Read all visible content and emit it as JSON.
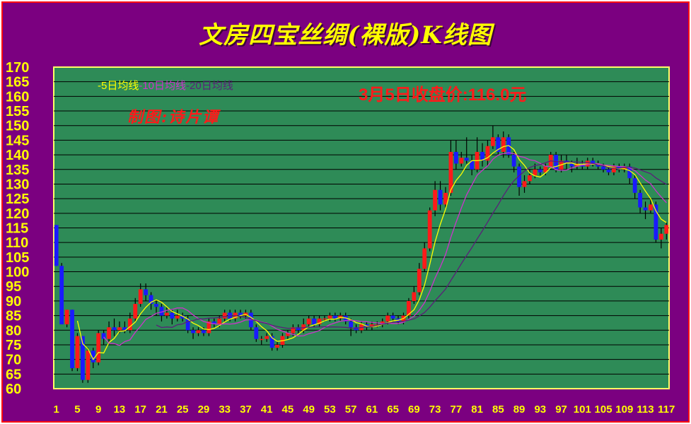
{
  "title": "文房四宝丝绸(裸版)K线图",
  "legend": {
    "ma5": "-5日均线",
    "ma10": "-10日均线",
    "ma20": "-20日均线"
  },
  "annotation_close": "3月5日收盘价:116.0元",
  "author": "制图:诗片谭",
  "colors": {
    "frame_bg": "#7b0080",
    "plot_bg": "#2e8b57",
    "up": "#ff1a1a",
    "down": "#1a1aff",
    "ma5": "#ffff00",
    "ma10": "#cc33cc",
    "ma20": "#5a1f7a",
    "labels": "#ffff00"
  },
  "chart_data": {
    "type": "candlestick",
    "title": "文房四宝丝绸(裸版)K线图",
    "ylim": [
      60,
      170
    ],
    "yticks": [
      60,
      65,
      70,
      75,
      80,
      85,
      90,
      95,
      100,
      105,
      110,
      115,
      120,
      125,
      130,
      135,
      140,
      145,
      150,
      155,
      160,
      165,
      170
    ],
    "xlim": [
      1,
      117
    ],
    "xtick_labels": [
      "1",
      "5",
      "9",
      "13",
      "17",
      "21",
      "25",
      "29",
      "33",
      "37",
      "41",
      "45",
      "49",
      "53",
      "57",
      "61",
      "65",
      "69",
      "73",
      "77",
      "81",
      "85",
      "89",
      "93",
      "97",
      "101",
      "105",
      "109",
      "113",
      "117"
    ],
    "grid": true,
    "candles": [
      [
        1,
        116,
        102,
        116,
        102
      ],
      [
        2,
        102,
        82,
        103,
        82
      ],
      [
        3,
        82,
        87,
        87,
        81
      ],
      [
        4,
        87,
        67,
        87,
        66
      ],
      [
        5,
        67,
        78,
        79,
        66
      ],
      [
        6,
        78,
        63,
        78,
        62
      ],
      [
        7,
        63,
        73,
        74,
        62
      ],
      [
        8,
        73,
        69,
        74,
        67
      ],
      [
        9,
        69,
        79,
        80,
        68
      ],
      [
        10,
        79,
        77,
        80,
        75
      ],
      [
        11,
        77,
        81,
        83,
        76
      ],
      [
        12,
        81,
        80,
        84,
        78
      ],
      [
        13,
        80,
        81,
        83,
        79
      ],
      [
        14,
        81,
        80,
        83,
        79
      ],
      [
        15,
        80,
        84,
        86,
        79
      ],
      [
        16,
        84,
        89,
        91,
        83
      ],
      [
        17,
        89,
        94,
        96,
        88
      ],
      [
        18,
        94,
        92,
        96,
        90
      ],
      [
        19,
        92,
        89,
        93,
        87
      ],
      [
        20,
        89,
        88,
        90,
        85
      ],
      [
        21,
        88,
        85,
        89,
        83
      ],
      [
        22,
        85,
        86,
        88,
        84
      ],
      [
        23,
        86,
        84,
        87,
        82
      ],
      [
        24,
        84,
        85,
        87,
        83
      ],
      [
        25,
        85,
        84,
        86,
        83
      ],
      [
        26,
        84,
        80,
        85,
        79
      ],
      [
        27,
        80,
        79,
        81,
        77
      ],
      [
        28,
        79,
        80,
        81,
        78
      ],
      [
        29,
        80,
        79,
        81,
        78
      ],
      [
        30,
        79,
        83,
        84,
        78
      ],
      [
        31,
        83,
        82,
        84,
        81
      ],
      [
        32,
        82,
        84,
        85,
        81
      ],
      [
        33,
        84,
        86,
        87,
        83
      ],
      [
        34,
        86,
        84,
        87,
        83
      ],
      [
        35,
        84,
        86,
        87,
        83
      ],
      [
        36,
        86,
        85,
        87,
        84
      ],
      [
        37,
        85,
        86,
        87,
        84
      ],
      [
        38,
        86,
        81,
        87,
        80
      ],
      [
        39,
        81,
        77,
        82,
        76
      ],
      [
        40,
        77,
        77,
        78,
        75
      ],
      [
        41,
        77,
        78,
        79,
        76
      ],
      [
        42,
        78,
        74,
        79,
        73
      ],
      [
        43,
        74,
        75,
        76,
        73
      ],
      [
        44,
        75,
        78,
        79,
        74
      ],
      [
        45,
        78,
        79,
        80,
        77
      ],
      [
        46,
        79,
        81,
        82,
        78
      ],
      [
        47,
        81,
        80,
        82,
        79
      ],
      [
        48,
        80,
        82,
        84,
        79
      ],
      [
        49,
        82,
        84,
        85,
        81
      ],
      [
        50,
        84,
        82,
        85,
        81
      ],
      [
        51,
        82,
        84,
        85,
        81
      ],
      [
        52,
        84,
        84,
        85,
        83
      ],
      [
        53,
        84,
        85,
        86,
        83
      ],
      [
        54,
        85,
        84,
        86,
        83
      ],
      [
        55,
        84,
        85,
        86,
        83
      ],
      [
        56,
        85,
        83,
        86,
        82
      ],
      [
        57,
        83,
        81,
        84,
        78
      ],
      [
        58,
        81,
        80,
        82,
        79
      ],
      [
        59,
        80,
        82,
        83,
        79
      ],
      [
        60,
        82,
        81,
        83,
        80
      ],
      [
        61,
        81,
        82,
        83,
        80
      ],
      [
        62,
        82,
        82,
        83,
        81
      ],
      [
        63,
        82,
        83,
        84,
        81
      ],
      [
        64,
        83,
        85,
        86,
        82
      ],
      [
        65,
        85,
        84,
        86,
        83
      ],
      [
        66,
        84,
        83,
        85,
        82
      ],
      [
        67,
        83,
        85,
        86,
        82
      ],
      [
        68,
        85,
        90,
        91,
        84
      ],
      [
        69,
        90,
        93,
        95,
        89
      ],
      [
        70,
        93,
        101,
        103,
        92
      ],
      [
        71,
        101,
        108,
        110,
        100
      ],
      [
        72,
        108,
        121,
        122,
        107
      ],
      [
        73,
        121,
        128,
        131,
        119
      ],
      [
        74,
        128,
        123,
        131,
        121
      ],
      [
        75,
        123,
        127,
        129,
        122
      ],
      [
        76,
        127,
        141,
        145,
        126
      ],
      [
        77,
        141,
        137,
        145,
        135
      ],
      [
        78,
        137,
        139,
        141,
        136
      ],
      [
        79,
        139,
        138,
        146,
        137
      ],
      [
        80,
        138,
        135,
        140,
        133
      ],
      [
        81,
        135,
        141,
        146,
        134
      ],
      [
        82,
        141,
        138,
        144,
        136
      ],
      [
        83,
        138,
        143,
        145,
        136
      ],
      [
        84,
        143,
        146,
        150,
        142
      ],
      [
        85,
        146,
        141,
        147,
        140
      ],
      [
        86,
        141,
        146,
        148,
        139
      ],
      [
        87,
        146,
        140,
        147,
        139
      ],
      [
        88,
        140,
        136,
        141,
        134
      ],
      [
        89,
        136,
        129,
        137,
        126
      ],
      [
        90,
        129,
        131,
        133,
        127
      ],
      [
        91,
        131,
        133,
        135,
        130
      ],
      [
        92,
        133,
        135,
        137,
        132
      ],
      [
        93,
        135,
        134,
        136,
        133
      ],
      [
        94,
        134,
        136,
        137,
        133
      ],
      [
        95,
        136,
        140,
        141,
        135
      ],
      [
        96,
        140,
        135,
        141,
        134
      ],
      [
        97,
        135,
        138,
        140,
        134
      ],
      [
        98,
        138,
        137,
        140,
        135
      ],
      [
        99,
        137,
        136,
        138,
        134
      ],
      [
        100,
        136,
        137,
        139,
        135
      ],
      [
        101,
        137,
        136,
        138,
        135
      ],
      [
        102,
        136,
        138,
        139,
        135
      ],
      [
        103,
        138,
        137,
        139,
        136
      ],
      [
        104,
        137,
        136,
        138,
        135
      ],
      [
        105,
        136,
        135,
        137,
        134
      ],
      [
        106,
        135,
        134,
        136,
        133
      ],
      [
        107,
        134,
        136,
        137,
        133
      ],
      [
        108,
        136,
        135,
        137,
        134
      ],
      [
        109,
        135,
        136,
        137,
        134
      ],
      [
        110,
        136,
        132,
        137,
        130
      ],
      [
        111,
        132,
        127,
        133,
        125
      ],
      [
        112,
        127,
        122,
        128,
        120
      ],
      [
        113,
        122,
        121,
        124,
        118
      ],
      [
        114,
        121,
        123,
        125,
        120
      ],
      [
        115,
        123,
        111,
        124,
        110
      ],
      [
        116,
        111,
        113,
        115,
        108
      ],
      [
        117,
        113,
        116,
        117,
        111
      ]
    ]
  }
}
